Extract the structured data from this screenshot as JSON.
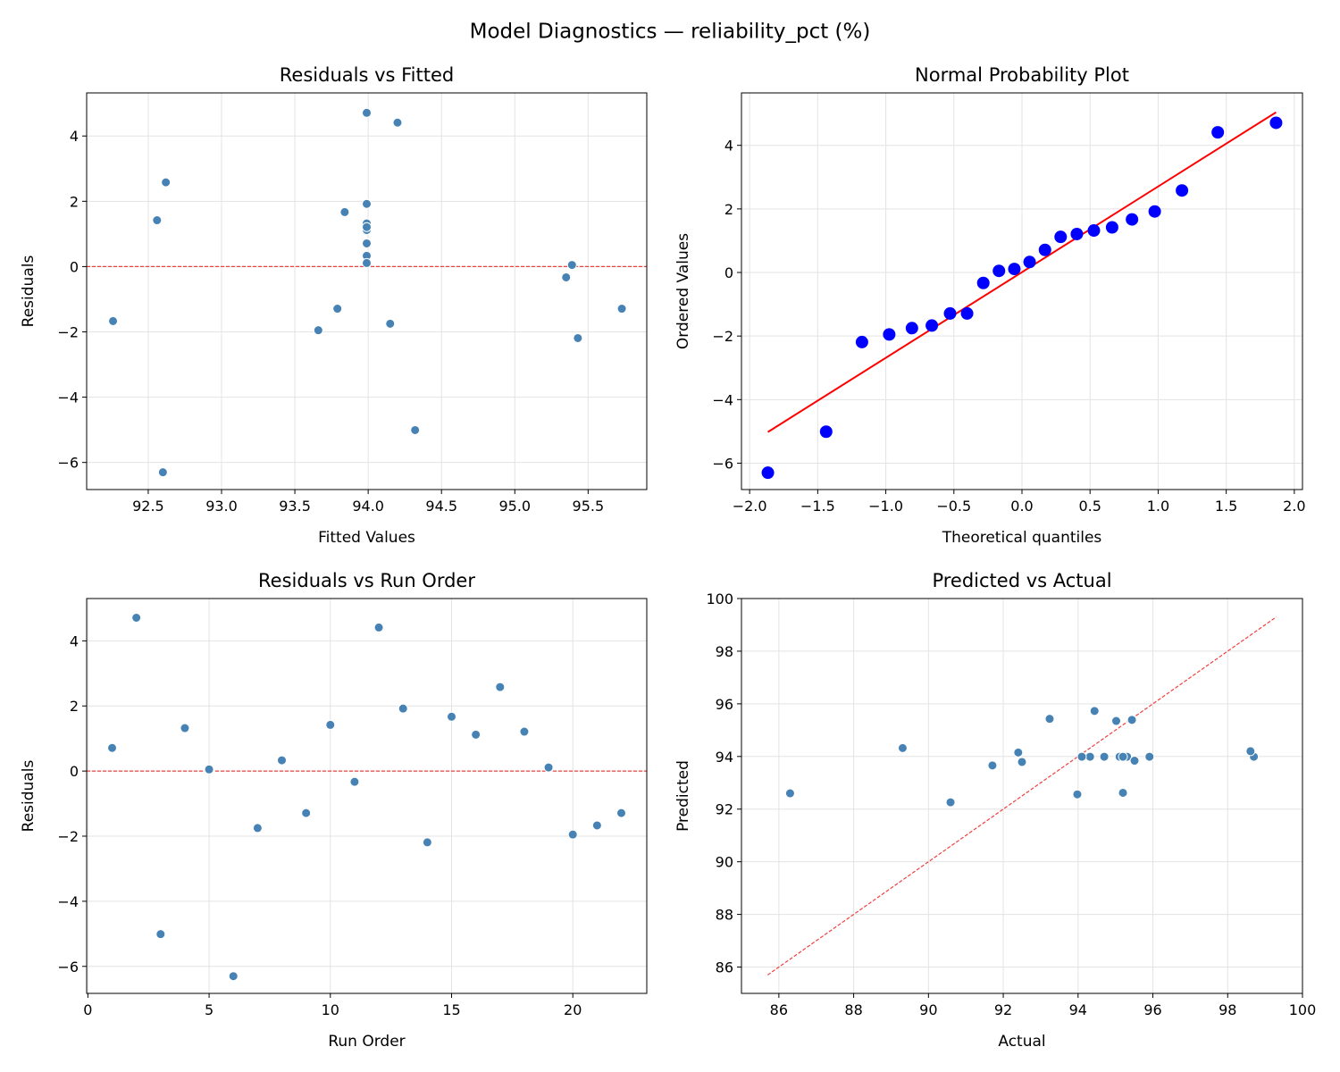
{
  "title": "Model Diagnostics — reliability_pct (%)",
  "chart_data": [
    {
      "type": "scatter",
      "title": "Residuals vs Fitted",
      "x_label": "Fitted Values",
      "y_label": "Residuals",
      "x": [
        93.99,
        93.99,
        94.32,
        93.99,
        95.39,
        92.6,
        94.15,
        93.99,
        93.79,
        92.56,
        95.35,
        94.2,
        93.99,
        95.43,
        93.84,
        93.99,
        92.62,
        93.99,
        93.99,
        93.66,
        92.26,
        95.73
      ],
      "values": [
        0.71,
        4.71,
        -5.01,
        1.32,
        0.05,
        -6.3,
        -1.75,
        0.33,
        -1.29,
        1.42,
        -0.33,
        4.41,
        1.92,
        -2.19,
        1.67,
        1.12,
        2.58,
        1.21,
        0.11,
        -1.95,
        -1.67,
        -1.29
      ],
      "color": "#4682b4",
      "edge_color": "#ffffff",
      "marker_radius": 5,
      "xlim": [
        92.08,
        95.9
      ],
      "ylim": [
        -6.83,
        5.32
      ],
      "xticks": [
        92.5,
        {
          "value": 93,
          "label": "93.0"
        },
        93.5,
        {
          "value": 94,
          "label": "94.0"
        },
        94.5,
        {
          "value": 95,
          "label": "95.0"
        },
        95.5
      ],
      "yticks": [
        {
          "value": -6,
          "label": "−6"
        },
        {
          "value": -4,
          "label": "−4"
        },
        {
          "value": -2,
          "label": "−2"
        },
        0,
        2,
        4
      ],
      "reference_y": 0,
      "reference_color": "#f04040",
      "grid": true
    },
    {
      "type": "probability",
      "title": "Normal Probability Plot",
      "x_label": "Theoretical quantiles",
      "y_label": "Ordered Values",
      "x": [
        -1.866,
        -1.438,
        -1.175,
        -0.975,
        -0.808,
        -0.662,
        -0.528,
        -0.403,
        -0.284,
        -0.169,
        -0.056,
        0.056,
        0.169,
        0.284,
        0.403,
        0.528,
        0.662,
        0.808,
        0.975,
        1.175,
        1.438,
        1.866
      ],
      "values": [
        -6.3,
        -5.01,
        -2.19,
        -1.95,
        -1.75,
        -1.67,
        -1.29,
        -1.29,
        -0.33,
        0.05,
        0.11,
        0.33,
        0.71,
        1.12,
        1.21,
        1.32,
        1.42,
        1.67,
        1.92,
        2.58,
        4.41,
        4.71
      ],
      "color": "#0000ff",
      "marker_radius": 7,
      "fit_line": {
        "x": [
          -1.866,
          1.866
        ],
        "y": [
          -5.02,
          5.04
        ],
        "color": "#ff0000"
      },
      "xlim": [
        -2.06,
        2.06
      ],
      "ylim": [
        -6.83,
        5.65
      ],
      "xticks": [
        {
          "value": -2,
          "label": "−2.0"
        },
        {
          "value": -1.5,
          "label": "−1.5"
        },
        {
          "value": -1,
          "label": "−1.0"
        },
        {
          "value": -0.5,
          "label": "−0.5"
        },
        {
          "value": 0,
          "label": "0.0"
        },
        0.5,
        {
          "value": 1,
          "label": "1.0"
        },
        1.5,
        {
          "value": 2,
          "label": "2.0"
        }
      ],
      "yticks": [
        {
          "value": -6,
          "label": "−6"
        },
        {
          "value": -4,
          "label": "−4"
        },
        {
          "value": -2,
          "label": "−2"
        },
        0,
        2,
        4
      ],
      "grid": true
    },
    {
      "type": "scatter",
      "title": "Residuals vs Run Order",
      "x_label": "Run Order",
      "y_label": "Residuals",
      "x": [
        1,
        2,
        3,
        4,
        5,
        6,
        7,
        8,
        9,
        10,
        11,
        12,
        13,
        14,
        15,
        16,
        17,
        18,
        19,
        20,
        21,
        22
      ],
      "values": [
        0.71,
        4.71,
        -5.01,
        1.32,
        0.05,
        -6.3,
        -1.75,
        0.33,
        -1.29,
        1.42,
        -0.33,
        4.41,
        1.92,
        -2.19,
        1.67,
        1.12,
        2.58,
        1.21,
        0.11,
        -1.95,
        -1.67,
        -1.29
      ],
      "color": "#4682b4",
      "edge_color": "#ffffff",
      "marker_radius": 5,
      "xlim": [
        -0.05,
        23.05
      ],
      "ylim": [
        -6.83,
        5.3
      ],
      "xticks": [
        0,
        5,
        10,
        15,
        20
      ],
      "yticks": [
        {
          "value": -6,
          "label": "−6"
        },
        {
          "value": -4,
          "label": "−4"
        },
        {
          "value": -2,
          "label": "−2"
        },
        0,
        2,
        4
      ],
      "reference_y": 0,
      "reference_color": "#f04040",
      "grid": true
    },
    {
      "type": "scatter",
      "title": "Predicted vs Actual",
      "x_label": "Actual",
      "y_label": "Predicted",
      "x": [
        94.7,
        98.7,
        89.31,
        95.31,
        95.44,
        86.3,
        92.4,
        94.32,
        92.5,
        93.98,
        95.02,
        98.61,
        95.91,
        93.24,
        95.51,
        95.11,
        95.2,
        95.2,
        94.1,
        91.71,
        90.59,
        94.44
      ],
      "values": [
        93.99,
        93.99,
        94.32,
        93.99,
        95.39,
        92.6,
        94.15,
        93.99,
        93.79,
        92.56,
        95.35,
        94.2,
        93.99,
        95.43,
        93.84,
        93.99,
        92.62,
        93.99,
        93.99,
        93.66,
        92.26,
        95.73
      ],
      "color": "#4682b4",
      "edge_color": "#ffffff",
      "marker_radius": 5,
      "xlim": [
        85,
        100
      ],
      "ylim": [
        85,
        100
      ],
      "xticks": [
        86,
        88,
        90,
        92,
        94,
        96,
        98,
        100
      ],
      "yticks": [
        86,
        88,
        90,
        92,
        94,
        96,
        98,
        100
      ],
      "identity_line": [
        85.7,
        99.3
      ],
      "reference_color": "#f04040",
      "grid": true
    }
  ]
}
